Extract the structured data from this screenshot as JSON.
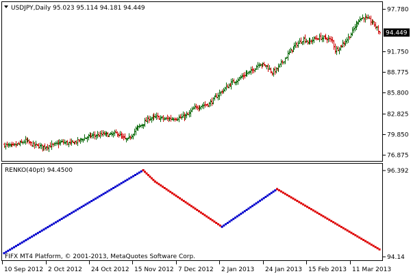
{
  "header": {
    "symbol_line": "USDJPY,Daily  95.023 95.114 94.181 94.449",
    "current_price_label": "94.449"
  },
  "indicator": {
    "title": "RENKO(40pt) 94.4500",
    "top_label": "96.392",
    "bottom_label": "94.14"
  },
  "footer": {
    "copyright": "FIFX MT4 Platform, © 2001-2013, MetaQuotes Software Corp."
  },
  "colors": {
    "bull": "#0000cc",
    "bear": "#dd0000",
    "bar": "#006400",
    "bar_down": "#cc0000",
    "price_label_bg": "#000000",
    "price_label_text": "#ffffff"
  },
  "chart_data": [
    {
      "type": "bar",
      "title": "USDJPY,Daily",
      "ylim": [
        76.0,
        98.8
      ],
      "yticks": [
        "97.780",
        "94.449",
        "91.750",
        "88.775",
        "85.800",
        "82.825",
        "79.850",
        "76.875"
      ],
      "ytick_values": [
        97.78,
        94.449,
        91.75,
        88.775,
        85.8,
        82.825,
        79.85,
        76.875
      ],
      "xticks": [
        "10 Sep 2012",
        "2 Oct 2012",
        "24 Oct 2012",
        "15 Nov 2012",
        "7 Dec 2012",
        "2 Jan 2013",
        "24 Jan 2013",
        "15 Feb 2013",
        "11 Mar 2013"
      ],
      "close_path": [
        [
          0,
          78.3
        ],
        [
          6,
          78.1
        ],
        [
          12,
          78.5
        ],
        [
          16,
          78.9
        ],
        [
          22,
          78.3
        ],
        [
          30,
          78.0
        ],
        [
          38,
          78.3
        ],
        [
          44,
          78.7
        ],
        [
          50,
          78.5
        ],
        [
          56,
          78.8
        ],
        [
          60,
          79.2
        ],
        [
          66,
          79.6
        ],
        [
          72,
          79.7
        ],
        [
          76,
          79.9
        ],
        [
          80,
          79.7
        ],
        [
          86,
          80.0
        ],
        [
          90,
          79.3
        ],
        [
          94,
          79.0
        ],
        [
          100,
          80.5
        ],
        [
          106,
          81.4
        ],
        [
          110,
          82.1
        ],
        [
          116,
          82.3
        ],
        [
          122,
          82.0
        ],
        [
          128,
          82.1
        ],
        [
          134,
          82.2
        ],
        [
          140,
          82.6
        ],
        [
          144,
          83.5
        ],
        [
          150,
          83.9
        ],
        [
          156,
          84.2
        ],
        [
          162,
          85.3
        ],
        [
          168,
          86.4
        ],
        [
          174,
          87.3
        ],
        [
          178,
          87.7
        ],
        [
          184,
          88.5
        ],
        [
          188,
          88.8
        ],
        [
          194,
          90.0
        ],
        [
          200,
          89.6
        ],
        [
          204,
          88.7
        ],
        [
          208,
          89.2
        ],
        [
          212,
          90.2
        ],
        [
          218,
          91.8
        ],
        [
          222,
          92.6
        ],
        [
          228,
          93.5
        ],
        [
          232,
          93.0
        ],
        [
          236,
          93.5
        ],
        [
          240,
          93.7
        ],
        [
          246,
          93.6
        ],
        [
          250,
          93.2
        ],
        [
          252,
          91.9
        ],
        [
          256,
          92.4
        ],
        [
          260,
          93.2
        ],
        [
          264,
          94.2
        ],
        [
          270,
          96.3
        ],
        [
          274,
          96.6
        ],
        [
          278,
          96.2
        ],
        [
          282,
          95.6
        ],
        [
          286,
          94.4
        ]
      ]
    },
    {
      "type": "line",
      "title": "RENKO(40pt) 94.4500",
      "x_index_range": [
        0,
        286
      ],
      "segments": [
        {
          "direction": "up",
          "from": [
            0,
            94.2
          ],
          "to": [
            106,
            96.4
          ]
        },
        {
          "direction": "down",
          "from": [
            106,
            96.4
          ],
          "to": [
            115,
            96.1
          ]
        },
        {
          "direction": "down",
          "from": [
            115,
            96.1
          ],
          "to": [
            166,
            94.9
          ]
        },
        {
          "direction": "up",
          "from": [
            166,
            94.9
          ],
          "to": [
            208,
            95.9
          ]
        },
        {
          "direction": "down",
          "from": [
            208,
            95.9
          ],
          "to": [
            286,
            94.3
          ]
        }
      ]
    }
  ]
}
